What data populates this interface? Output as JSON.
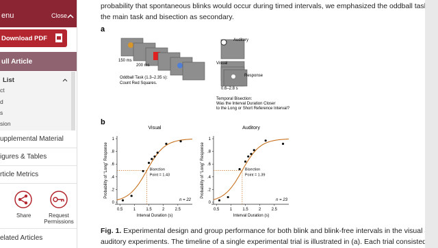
{
  "sidebar": {
    "header": "enu",
    "close": "Close",
    "download": "Download PDF",
    "full_article": "ull Article",
    "list_title": "List",
    "list_items": [
      "ct",
      "d",
      "s",
      "sion"
    ],
    "links": [
      "upplemental Material",
      "igures & Tables",
      "rticle Metrics"
    ],
    "actions": [
      "Share",
      "Request Permissions"
    ],
    "related": "elated Articles"
  },
  "article": {
    "paragraph_lines": [
      "probability that spontaneous blinks would occur during timed intervals, we emphasized the oddball task as",
      "the main task and bisection as secondary."
    ],
    "figure": {
      "panel_a": {
        "label": "a",
        "timing_1": "150 ms",
        "timing_2": "200 ms",
        "oddball": [
          "Oddball Task (1.3–2.35 s):",
          "Count Red Squares."
        ],
        "auditory": "Auditory",
        "visual": "Visual",
        "response": "Response",
        "interval": "0.6–2.8 s",
        "bisection": [
          "Temporal Bisection:",
          "Was the Interval Duration Closer",
          "to the Long or Short Reference Interval?"
        ]
      },
      "panel_b": {
        "label": "b",
        "charts": [
          {
            "type": "scatter",
            "title": "Visual",
            "x_label": "Interval Duration (s)",
            "y_label": "Probability of “Long” Response",
            "x": [
              0.6,
              0.9,
              1.3,
              1.5,
              1.6,
              1.7,
              1.8,
              2.1,
              2.6
            ],
            "values": [
              0.03,
              0.1,
              0.49,
              0.62,
              0.68,
              0.72,
              0.78,
              0.92,
              0.96
            ],
            "color": "#111111",
            "curve_color": "#c8721e",
            "pse": 1.43,
            "pse_label": [
              "Bisection",
              "Point = 1.43"
            ],
            "n_label": "n = 22",
            "xlim": [
              0.4,
              3.0
            ],
            "ylim": [
              0,
              1
            ],
            "xticks": [
              0.5,
              1,
              1.5,
              2,
              2.5
            ],
            "yticks": [
              0,
              {
                "value": 0.2,
                "label": ".2"
              },
              {
                "value": 0.4,
                "label": ".4"
              },
              {
                "value": 0.6,
                "label": ".6"
              },
              {
                "value": 0.8,
                "label": ".8"
              },
              1
            ]
          },
          {
            "type": "scatter",
            "title": "Auditory",
            "x_label": "Interval Duration (s)",
            "y_label": "Probability of “Long” Response",
            "x": [
              0.6,
              0.9,
              1.3,
              1.5,
              1.6,
              1.7,
              1.8,
              2.2,
              2.8
            ],
            "values": [
              0.03,
              0.08,
              0.52,
              0.64,
              0.72,
              0.76,
              0.82,
              0.97,
              0.92
            ],
            "color": "#111111",
            "curve_color": "#c8721e",
            "pse": 1.39,
            "pse_label": [
              "Bisection",
              "Point = 1.39"
            ],
            "n_label": "n = 23",
            "xlim": [
              0.4,
              3.0
            ],
            "ylim": [
              0,
              1
            ],
            "xticks": [
              0.5,
              1,
              1.5,
              2,
              2.5
            ],
            "yticks": [
              0,
              {
                "value": 0.2,
                "label": ".2"
              },
              {
                "value": 0.4,
                "label": ".4"
              },
              {
                "value": 0.6,
                "label": ".6"
              },
              {
                "value": 0.8,
                "label": ".8"
              },
              1
            ]
          }
        ]
      },
      "caption_label": "Fig. 1.",
      "caption_lines": [
        " Experimental design and group performance for both blink and blink-free intervals in the visual and",
        "auditory experiments. The timeline of a single experimental trial is illustrated in (a). Each trial consisted of"
      ]
    }
  }
}
